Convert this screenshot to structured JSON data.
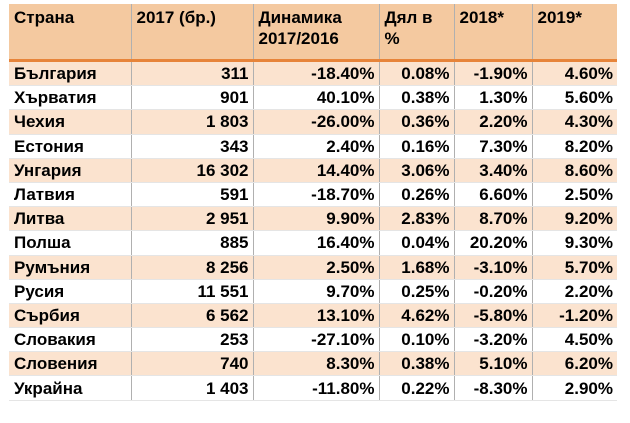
{
  "table": {
    "headers": [
      "Страна",
      "2017 (бр.)",
      "Динамика 2017/2016",
      "Дял в %",
      "2018*",
      "2019*"
    ],
    "rows": [
      [
        "България",
        "311",
        "-18.40%",
        "0.08%",
        "-1.90%",
        "4.60%"
      ],
      [
        "Хърватия",
        "901",
        "40.10%",
        "0.38%",
        "1.30%",
        "5.60%"
      ],
      [
        "Чехия",
        "1 803",
        "-26.00%",
        "0.36%",
        "2.20%",
        "4.30%"
      ],
      [
        "Естония",
        "343",
        "2.40%",
        "0.16%",
        "7.30%",
        "8.20%"
      ],
      [
        "Унгария",
        "16 302",
        "14.40%",
        "3.06%",
        "3.40%",
        "8.60%"
      ],
      [
        "Латвия",
        "591",
        "-18.70%",
        "0.26%",
        "6.60%",
        "2.50%"
      ],
      [
        "Литва",
        "2 951",
        "9.90%",
        "2.83%",
        "8.70%",
        "9.20%"
      ],
      [
        "Полша",
        "885",
        "16.40%",
        "0.04%",
        "20.20%",
        "9.30%"
      ],
      [
        "Румъния",
        "8 256",
        "2.50%",
        "1.68%",
        "-3.10%",
        "5.70%"
      ],
      [
        "Русия",
        "11 551",
        "9.70%",
        "0.25%",
        "-0.20%",
        "2.20%"
      ],
      [
        "Сърбия",
        "6 562",
        "13.10%",
        "4.62%",
        "-5.80%",
        "-1.20%"
      ],
      [
        "Словакия",
        "253",
        "-27.10%",
        "0.10%",
        "-3.20%",
        "4.50%"
      ],
      [
        "Словения",
        "740",
        "8.30%",
        "0.38%",
        "5.10%",
        "6.20%"
      ],
      [
        "Украйна",
        "1 403",
        "-11.80%",
        "0.22%",
        "-8.30%",
        "2.90%"
      ]
    ]
  },
  "colors": {
    "header_bg": "#f4c9a0",
    "stripe_bg": "#fbe3cf",
    "accent_line": "#e7843a"
  }
}
